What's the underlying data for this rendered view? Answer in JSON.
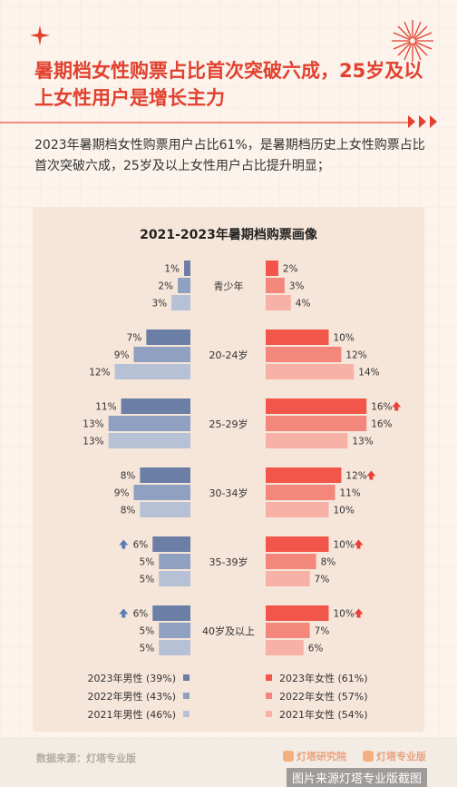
{
  "header": {
    "title": "暑期档女性购票占比首次突破六成，25岁及以上女性用户是增长主力",
    "subtitle": "2023年暑期档女性购票用户占比61%，是暑期档历史上女性购票占比首次突破六成，25岁及以上女性用户占比提升明显；"
  },
  "chart_data": {
    "type": "bar",
    "title": "2021-2023年暑期档购票画像",
    "categories": [
      "青少年",
      "20-24岁",
      "25-29岁",
      "30-34岁",
      "35-39岁",
      "40岁及以上"
    ],
    "series": [
      {
        "name": "2023年男性 (39%)",
        "side": "left",
        "color": "#6a7ea6",
        "values": [
          1,
          7,
          11,
          8,
          6,
          6
        ],
        "labels": [
          "1%",
          "7%",
          "11%",
          "8%",
          "6%",
          "6%"
        ]
      },
      {
        "name": "2022年男性 (43%)",
        "side": "left",
        "color": "#8fa0c0",
        "values": [
          2,
          9,
          13,
          9,
          5,
          5
        ],
        "labels": [
          "2%",
          "9%",
          "13%",
          "9%",
          "5%",
          "5%"
        ]
      },
      {
        "name": "2021年男性 (46%)",
        "side": "left",
        "color": "#b6c1d5",
        "values": [
          3,
          12,
          13,
          8,
          5,
          5
        ],
        "labels": [
          "3%",
          "12%",
          "13%",
          "8%",
          "5%",
          "5%"
        ]
      },
      {
        "name": "2023年女性 (61%)",
        "side": "right",
        "color": "#f2554a",
        "values": [
          2,
          10,
          16,
          12,
          10,
          10
        ],
        "labels": [
          "2%",
          "10%",
          "16%",
          "12%",
          "10%",
          "10%"
        ]
      },
      {
        "name": "2022年女性 (57%)",
        "side": "right",
        "color": "#f4877c",
        "values": [
          3,
          12,
          16,
          11,
          8,
          7
        ],
        "labels": [
          "3%",
          "12%",
          "16%",
          "11%",
          "8%",
          "7%"
        ]
      },
      {
        "name": "2021年女性 (54%)",
        "side": "right",
        "color": "#f7b1a6",
        "values": [
          4,
          14,
          13,
          10,
          7,
          6
        ],
        "labels": [
          "4%",
          "14%",
          "13%",
          "10%",
          "7%",
          "6%"
        ]
      }
    ],
    "up_markers": [
      {
        "series": 3,
        "category": 2
      },
      {
        "series": 3,
        "category": 3
      },
      {
        "series": 3,
        "category": 4
      },
      {
        "series": 3,
        "category": 5
      },
      {
        "series": 0,
        "category": 4
      },
      {
        "series": 0,
        "category": 5
      }
    ],
    "up_marker_colors": {
      "left": "#5b7bb5",
      "right": "#e8413a"
    },
    "legend_position": "bottom",
    "grid": false
  },
  "footer": {
    "source": "数据来源：灯塔专业版",
    "logo1": "灯塔研究院",
    "logo2": "灯塔专业版",
    "credit": "图片来源灯塔专业版截图"
  },
  "colors": {
    "accent": "#e2412f",
    "panel": "#f6e5d9",
    "background": "#fbf3ec"
  }
}
